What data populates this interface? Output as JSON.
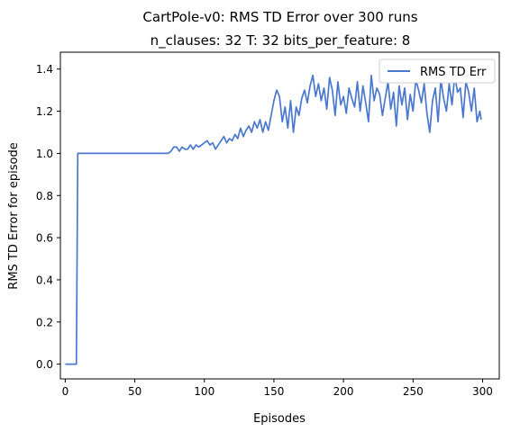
{
  "chart_data": {
    "type": "line",
    "title": "CartPole-v0: RMS TD Error over 300 runs",
    "subtitle": "n_clauses: 32 T: 32 bits_per_feature: 8",
    "xlabel": "Episodes",
    "ylabel": "RMS TD Error for episode",
    "xlim": [
      -3.5,
      312
    ],
    "ylim": [
      -0.07,
      1.48
    ],
    "xticks": [
      0,
      50,
      100,
      150,
      200,
      250,
      300
    ],
    "yticks": [
      0.0,
      0.2,
      0.4,
      0.6,
      0.8,
      1.0,
      1.2,
      1.4
    ],
    "legend_position": "top-right",
    "grid": false,
    "series": [
      {
        "name": "RMS TD Err",
        "color": "#4a78cf",
        "x": [
          0,
          8,
          9,
          10,
          20,
          30,
          40,
          50,
          60,
          70,
          74,
          76,
          78,
          80,
          82,
          84,
          86,
          88,
          90,
          92,
          94,
          96,
          98,
          100,
          102,
          104,
          106,
          108,
          110,
          112,
          114,
          116,
          118,
          120,
          122,
          124,
          126,
          128,
          130,
          132,
          134,
          136,
          138,
          140,
          142,
          144,
          146,
          148,
          150,
          152,
          154,
          156,
          158,
          160,
          162,
          164,
          166,
          168,
          170,
          172,
          174,
          176,
          178,
          180,
          182,
          184,
          186,
          188,
          190,
          192,
          194,
          196,
          198,
          200,
          202,
          204,
          206,
          208,
          210,
          212,
          214,
          216,
          218,
          220,
          222,
          224,
          226,
          228,
          230,
          232,
          234,
          236,
          238,
          240,
          242,
          244,
          246,
          248,
          250,
          252,
          254,
          256,
          258,
          260,
          262,
          264,
          266,
          268,
          270,
          272,
          274,
          276,
          278,
          280,
          282,
          284,
          286,
          288,
          290,
          292,
          294,
          296,
          298,
          299
        ],
        "values": [
          0.0,
          0.0,
          1.0,
          1.0,
          1.0,
          1.0,
          1.0,
          1.0,
          1.0,
          1.0,
          1.0,
          1.01,
          1.03,
          1.03,
          1.01,
          1.03,
          1.02,
          1.02,
          1.04,
          1.02,
          1.04,
          1.03,
          1.04,
          1.05,
          1.06,
          1.04,
          1.05,
          1.02,
          1.04,
          1.06,
          1.08,
          1.05,
          1.07,
          1.06,
          1.09,
          1.07,
          1.12,
          1.08,
          1.11,
          1.13,
          1.1,
          1.15,
          1.12,
          1.16,
          1.1,
          1.15,
          1.11,
          1.18,
          1.25,
          1.3,
          1.27,
          1.15,
          1.22,
          1.12,
          1.25,
          1.1,
          1.22,
          1.18,
          1.26,
          1.3,
          1.24,
          1.32,
          1.37,
          1.27,
          1.33,
          1.25,
          1.31,
          1.21,
          1.36,
          1.3,
          1.18,
          1.34,
          1.23,
          1.27,
          1.19,
          1.31,
          1.26,
          1.22,
          1.34,
          1.2,
          1.32,
          1.24,
          1.15,
          1.37,
          1.25,
          1.31,
          1.28,
          1.18,
          1.26,
          1.34,
          1.21,
          1.29,
          1.13,
          1.32,
          1.23,
          1.31,
          1.16,
          1.28,
          1.2,
          1.35,
          1.3,
          1.24,
          1.33,
          1.19,
          1.1,
          1.25,
          1.31,
          1.15,
          1.35,
          1.26,
          1.2,
          1.33,
          1.23,
          1.37,
          1.29,
          1.31,
          1.17,
          1.34,
          1.29,
          1.2,
          1.31,
          1.15,
          1.2,
          1.16
        ]
      }
    ]
  }
}
